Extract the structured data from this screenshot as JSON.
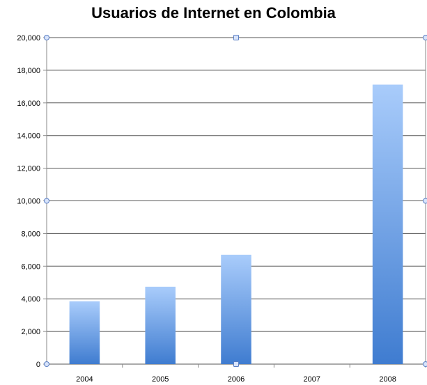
{
  "chart_data": {
    "type": "bar",
    "title": "Usuarios de Internet en Colombia",
    "xlabel": "",
    "ylabel": "",
    "categories": [
      "2004",
      "2005",
      "2006",
      "2007",
      "2008"
    ],
    "values": [
      3850,
      4740,
      6700,
      0,
      17120
    ],
    "ylim": [
      0,
      20000
    ],
    "yticks": [
      "0",
      "2,000",
      "4,000",
      "6,000",
      "8,000",
      "10,000",
      "12,000",
      "14,000",
      "16,000",
      "18,000",
      "20,000"
    ],
    "grid": true,
    "legend": "none",
    "colors": {
      "bar_top": "#A9CCFB",
      "bar_bottom": "#3F7CD0",
      "grid": "#555555",
      "axis": "#888888",
      "handle": "#5B7FC4"
    }
  }
}
